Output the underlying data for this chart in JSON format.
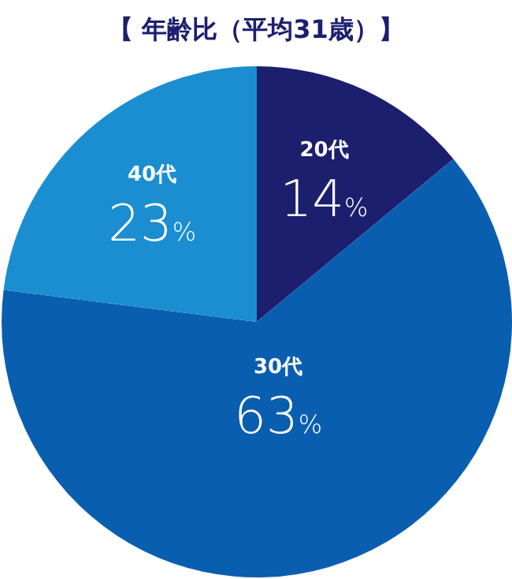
{
  "chart_data": {
    "type": "pie",
    "title": "【 年齢比（平均31歳）】",
    "categories": [
      "20代",
      "30代",
      "40代"
    ],
    "values": [
      14,
      63,
      23
    ],
    "value_labels": [
      "14%",
      "63%",
      "23%"
    ],
    "colors": [
      "#1c1f6e",
      "#0a5eb0",
      "#1a8ed0"
    ]
  }
}
